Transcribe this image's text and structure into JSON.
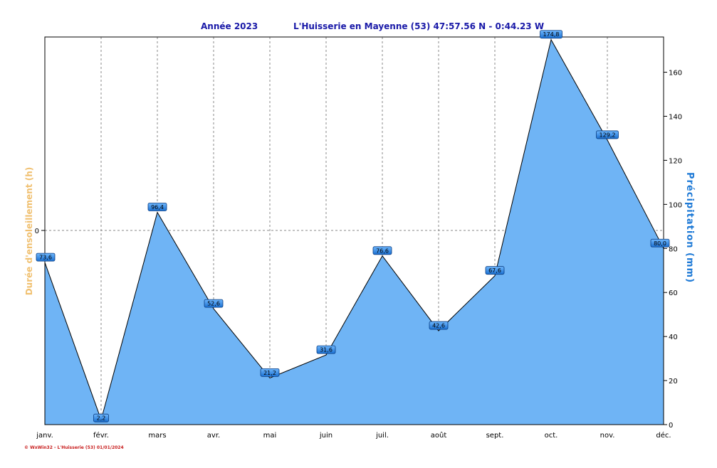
{
  "chart_data": {
    "type": "area",
    "title": "Année  2023",
    "subtitle": "L'Huisserie en Mayenne (53) 47:57.56 N - 0:44.23 W",
    "categories": [
      "janv.",
      "févr.",
      "mars",
      "avr.",
      "mai",
      "juin",
      "juil.",
      "août",
      "sept.",
      "oct.",
      "nov.",
      "déc."
    ],
    "series": [
      {
        "name": "Précipitation",
        "values": [
          73.6,
          2.2,
          96.4,
          52.6,
          21.2,
          31.6,
          76.6,
          42.6,
          67.6,
          174.8,
          129.2,
          80.0
        ]
      }
    ],
    "data_labels": [
      "73,6",
      "2,2",
      "96,4",
      "52,6",
      "21,2",
      "31,6",
      "76,6",
      "42,6",
      "67,6",
      "174,8",
      "129,2",
      "80,0"
    ],
    "ylabel_left": "Durée d'ensoleillement  (h)",
    "ylabel_right": "Précipitation  (mm)",
    "yticks_left": [
      "0"
    ],
    "yticks_right": [
      "0",
      "20",
      "40",
      "60",
      "80",
      "100",
      "120",
      "140",
      "160"
    ],
    "ylim_right": [
      0,
      176
    ],
    "grid": true,
    "fill_color": "#6fb4f5",
    "line_color": "#000000",
    "label_fill": "#1e78dc",
    "title_color": "#1a1aa8",
    "left_label_color": "#f0c070",
    "right_label_color": "#1d79d6"
  },
  "footer": "© WxWin32 - L'Huisserie (53)  01/01/2024"
}
